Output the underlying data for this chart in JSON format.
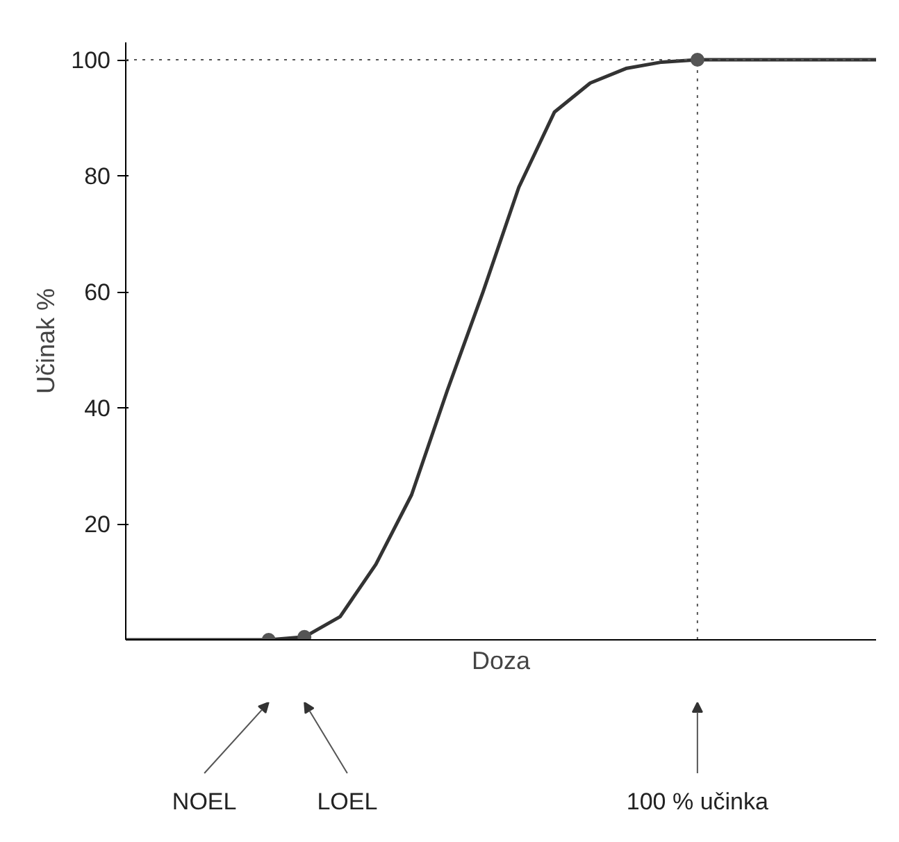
{
  "chart_data": {
    "type": "line",
    "xlabel": "Doza",
    "ylabel": "Učinak %",
    "categories": [
      null,
      null,
      null,
      null,
      null,
      null,
      null,
      null,
      null,
      null,
      null,
      null,
      null,
      null,
      null,
      null,
      null,
      null,
      null,
      null,
      null,
      null
    ],
    "series": [
      {
        "color": "#333333",
        "values": [
          0,
          0,
          0,
          0,
          0,
          0.5,
          4,
          13,
          25,
          43,
          60,
          78,
          91,
          96,
          98.5,
          99.6,
          100,
          100,
          100,
          100,
          100,
          100
        ]
      },
      {
        "type": "scatter",
        "color": "#555555",
        "marker": "circle",
        "values": [
          null,
          null,
          null,
          null,
          0,
          0.5,
          null,
          null,
          null,
          null,
          null,
          null,
          null,
          null,
          null,
          null,
          100,
          null,
          null,
          null,
          null,
          null
        ]
      }
    ],
    "annotations": [
      "NOEL",
      "LOEL",
      "100 % učinka"
    ],
    "ref_lines": [
      {
        "axis": "y",
        "value": 100,
        "line_style": "dotted",
        "color": "#555555"
      }
    ],
    "ylim": [
      0,
      103
    ],
    "yticks": [
      20,
      40,
      60,
      80,
      100
    ],
    "grid": false,
    "legend": false,
    "marker": "none",
    "line_style": "solid"
  }
}
